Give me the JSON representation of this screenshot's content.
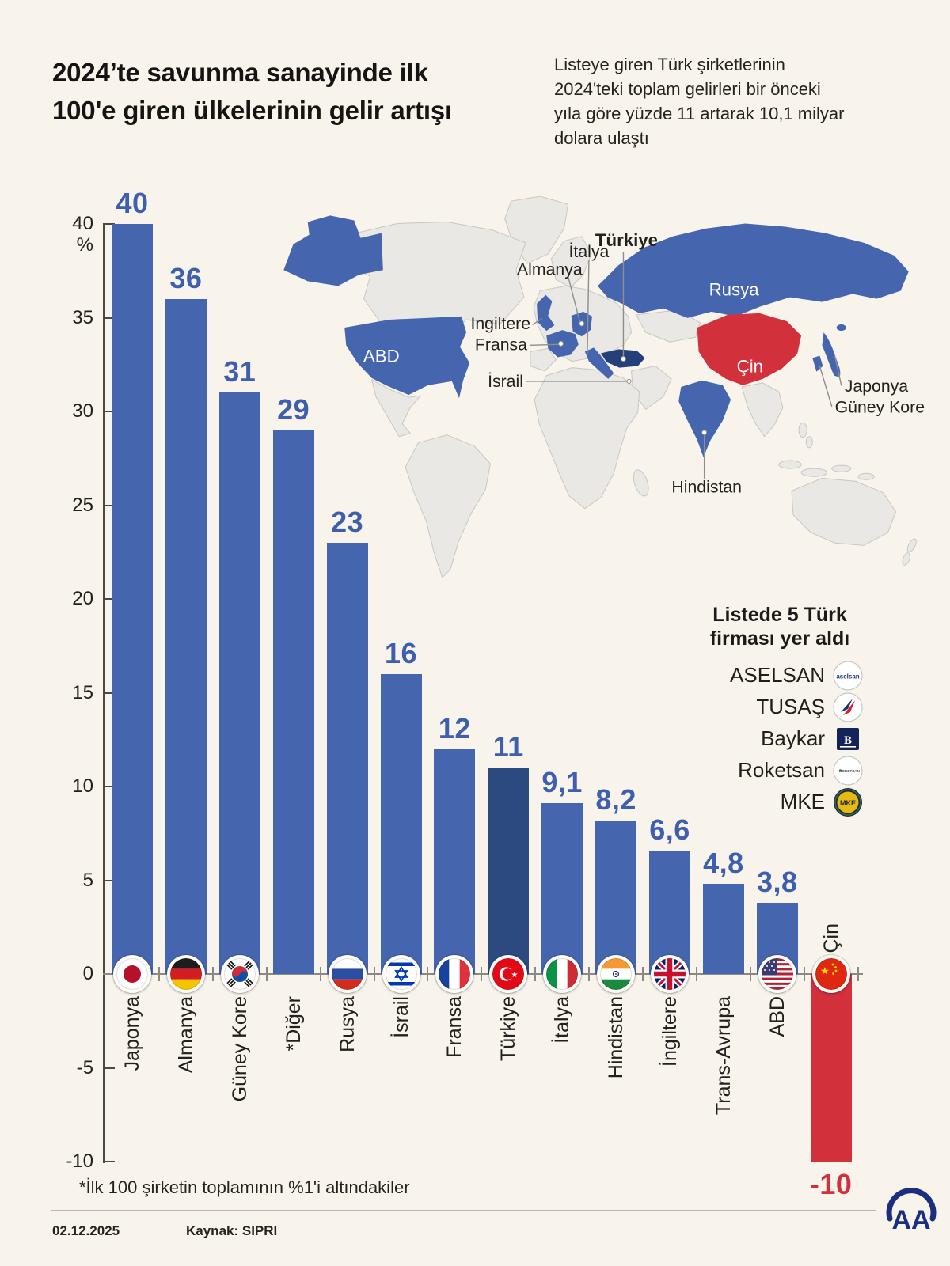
{
  "colors": {
    "background": "#f8f4ec",
    "bar_blue": "#4565af",
    "bar_navy": "#2c4a80",
    "bar_red": "#d2303b",
    "value_blue": "#3d5fad",
    "value_red": "#d2303b",
    "map_gray": "#e9e8e5",
    "map_stroke": "#c9c7c3",
    "map_blue": "#4565af",
    "map_navy": "#23407a",
    "map_red": "#d2303b",
    "aa_blue": "#1b2f7e"
  },
  "header": {
    "title_lines": [
      "2024’te savunma sanayinde ilk",
      "100'e giren ülkelerinin gelir artışı"
    ],
    "subtitle_lines": [
      "Listeye giren Türk şirketlerinin",
      "2024'teki toplam gelirleri bir önceki",
      "yıla göre yüzde 11 artarak 10,1 milyar",
      "dolara ulaştı"
    ]
  },
  "chart_data": {
    "type": "bar",
    "title": "2024'te savunma sanayinde ilk 100'e giren ülkelerinin gelir artışı",
    "unit": "%",
    "ylim": [
      -10,
      40
    ],
    "yticks": [
      "40",
      "35",
      "30",
      "25",
      "20",
      "15",
      "10",
      "5",
      "0",
      "-5",
      "-10"
    ],
    "grid": false,
    "categories": [
      "Japonya",
      "Almanya",
      "Güney Kore",
      "*Diğer",
      "Rusya",
      "İsrail",
      "Fransa",
      "Türkiye",
      "İtalya",
      "Hindistan",
      "İngiltere",
      "Trans-Avrupa",
      "ABD",
      "Çin"
    ],
    "values": [
      40,
      36,
      31,
      29,
      23,
      16,
      12,
      11,
      9.1,
      8.2,
      6.6,
      4.8,
      3.8,
      -10
    ],
    "bars": [
      {
        "label": "Japonya",
        "value": 40,
        "display": "40",
        "flag": "japan",
        "style": "blue"
      },
      {
        "label": "Almanya",
        "value": 36,
        "display": "36",
        "flag": "germany",
        "style": "blue"
      },
      {
        "label": "Güney Kore",
        "value": 31,
        "display": "31",
        "flag": "south-korea",
        "style": "blue"
      },
      {
        "label": "*Diğer",
        "value": 29,
        "display": "29",
        "flag": null,
        "style": "blue"
      },
      {
        "label": "Rusya",
        "value": 23,
        "display": "23",
        "flag": "russia",
        "style": "blue"
      },
      {
        "label": "İsrail",
        "value": 16,
        "display": "16",
        "flag": "israel",
        "style": "blue"
      },
      {
        "label": "Fransa",
        "value": 12,
        "display": "12",
        "flag": "france",
        "style": "blue"
      },
      {
        "label": "Türkiye",
        "value": 11,
        "display": "11",
        "flag": "turkey",
        "style": "navy"
      },
      {
        "label": "İtalya",
        "value": 9.1,
        "display": "9,1",
        "flag": "italy",
        "style": "blue"
      },
      {
        "label": "Hindistan",
        "value": 8.2,
        "display": "8,2",
        "flag": "india",
        "style": "blue"
      },
      {
        "label": "İngiltere",
        "value": 6.6,
        "display": "6,6",
        "flag": "uk",
        "style": "blue"
      },
      {
        "label": "Trans-Avrupa",
        "value": 4.8,
        "display": "4,8",
        "flag": null,
        "style": "blue"
      },
      {
        "label": "ABD",
        "value": 3.8,
        "display": "3,8",
        "flag": "usa",
        "style": "blue"
      },
      {
        "label": "Çin",
        "value": -10,
        "display": "-10",
        "flag": "china",
        "style": "red",
        "label_above": true
      }
    ]
  },
  "map": {
    "labels": {
      "abd": "ABD",
      "rusya": "Rusya",
      "cin": "Çin",
      "turkiye": "Türkiye",
      "italya": "İtalya",
      "almanya": "Almanya",
      "ingiltere": "Ingiltere",
      "fransa": "Fransa",
      "israil": "İsrail",
      "japonya": "Japonya",
      "guney_kore": "Güney Kore",
      "hindistan": "Hindistan"
    }
  },
  "legend": {
    "title_lines": [
      "Listede 5 Türk",
      "firması yer aldı"
    ],
    "firms": [
      {
        "name": "ASELSAN",
        "logo": "aselsan"
      },
      {
        "name": "TUSAŞ",
        "logo": "tusas"
      },
      {
        "name": "Baykar",
        "logo": "baykar"
      },
      {
        "name": "Roketsan",
        "logo": "roketsan"
      },
      {
        "name": "MKE",
        "logo": "mke"
      }
    ]
  },
  "footnote": "*İlk 100 şirketin toplamının %1'i altındakiler",
  "footer": {
    "date": "02.12.2025",
    "source": "Kaynak: SIPRI",
    "logo_text": "AA"
  }
}
